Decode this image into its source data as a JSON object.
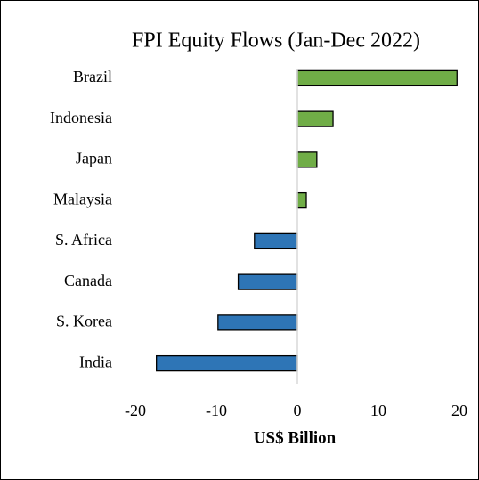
{
  "chart_data": {
    "type": "barh",
    "title": "FPI Equity Flows (Jan-Dec 2022)",
    "categories": [
      "Brazil",
      "Indonesia",
      "Japan",
      "Malaysia",
      "S. Africa",
      "Canada",
      "S. Korea",
      "India"
    ],
    "values": [
      19.7,
      4.4,
      2.4,
      1.1,
      -5.3,
      -7.3,
      -9.8,
      -17.4
    ],
    "colors": {
      "positive": "#70ad47",
      "negative": "#2e75b6"
    },
    "xlabel": "US$ Billion",
    "xlim": [
      -20,
      20
    ],
    "xticks": [
      -20,
      -10,
      0,
      10,
      20
    ],
    "grid": false
  }
}
